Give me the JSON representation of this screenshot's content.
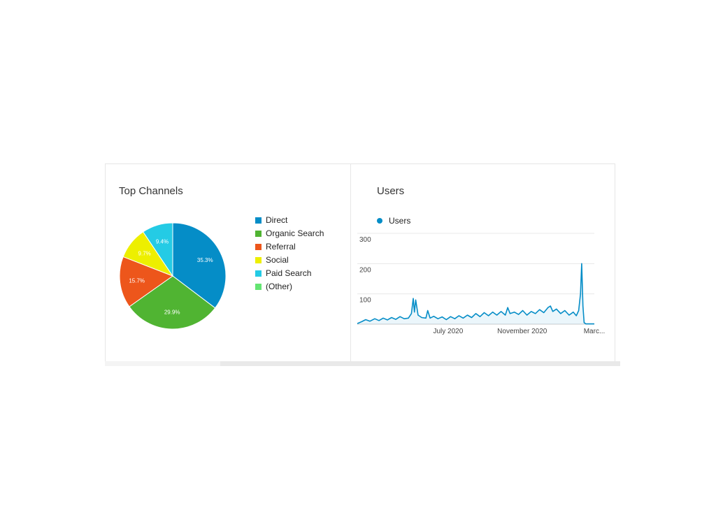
{
  "chart_data": [
    {
      "type": "pie",
      "title": "Top Channels",
      "legend_position": "right",
      "slices": [
        {
          "label": "Direct",
          "value": 35.3,
          "display": "35.3%",
          "color": "#058dc7"
        },
        {
          "label": "Organic Search",
          "value": 29.9,
          "display": "29.9%",
          "color": "#50b432"
        },
        {
          "label": "Referral",
          "value": 15.7,
          "display": "15.7%",
          "color": "#ed561b"
        },
        {
          "label": "Social",
          "value": 9.7,
          "display": "9.7%",
          "color": "#edef00"
        },
        {
          "label": "Paid Search",
          "value": 9.4,
          "display": "9.4%",
          "color": "#24cbe5"
        },
        {
          "label": "(Other)",
          "value": 0,
          "display": "",
          "color": "#64e572"
        }
      ]
    },
    {
      "type": "line",
      "title": "Users",
      "series_name": "Users",
      "color": "#058dc7",
      "ylim": [
        0,
        300
      ],
      "yticks": [
        "300",
        "200",
        "100"
      ],
      "ytick_values": [
        300,
        200,
        100
      ],
      "xticks": [
        {
          "label": "July 2020",
          "x": "2020-07-01"
        },
        {
          "label": "November 2020",
          "x": "2020-11-01"
        },
        {
          "label": "Marc...",
          "x": "2021-03-01"
        }
      ],
      "x_range": [
        "2020-02-01",
        "2021-03-01"
      ],
      "grid": true,
      "points": [
        [
          "2020-02-01",
          2
        ],
        [
          "2020-02-08",
          8
        ],
        [
          "2020-02-15",
          15
        ],
        [
          "2020-02-22",
          10
        ],
        [
          "2020-03-01",
          18
        ],
        [
          "2020-03-08",
          12
        ],
        [
          "2020-03-15",
          20
        ],
        [
          "2020-03-22",
          14
        ],
        [
          "2020-03-29",
          22
        ],
        [
          "2020-04-05",
          16
        ],
        [
          "2020-04-12",
          25
        ],
        [
          "2020-04-19",
          18
        ],
        [
          "2020-04-26",
          20
        ],
        [
          "2020-05-01",
          35
        ],
        [
          "2020-05-04",
          85
        ],
        [
          "2020-05-06",
          40
        ],
        [
          "2020-05-08",
          80
        ],
        [
          "2020-05-12",
          30
        ],
        [
          "2020-05-18",
          22
        ],
        [
          "2020-05-25",
          20
        ],
        [
          "2020-05-28",
          45
        ],
        [
          "2020-06-01",
          20
        ],
        [
          "2020-06-07",
          26
        ],
        [
          "2020-06-14",
          18
        ],
        [
          "2020-06-21",
          24
        ],
        [
          "2020-06-28",
          15
        ],
        [
          "2020-07-05",
          25
        ],
        [
          "2020-07-12",
          18
        ],
        [
          "2020-07-19",
          28
        ],
        [
          "2020-07-26",
          20
        ],
        [
          "2020-08-02",
          30
        ],
        [
          "2020-08-09",
          22
        ],
        [
          "2020-08-16",
          35
        ],
        [
          "2020-08-23",
          25
        ],
        [
          "2020-08-30",
          38
        ],
        [
          "2020-09-06",
          28
        ],
        [
          "2020-09-13",
          40
        ],
        [
          "2020-09-20",
          30
        ],
        [
          "2020-09-27",
          42
        ],
        [
          "2020-10-04",
          30
        ],
        [
          "2020-10-08",
          55
        ],
        [
          "2020-10-12",
          35
        ],
        [
          "2020-10-19",
          40
        ],
        [
          "2020-10-26",
          32
        ],
        [
          "2020-11-02",
          45
        ],
        [
          "2020-11-09",
          30
        ],
        [
          "2020-11-16",
          42
        ],
        [
          "2020-11-23",
          35
        ],
        [
          "2020-11-30",
          48
        ],
        [
          "2020-12-07",
          38
        ],
        [
          "2020-12-14",
          55
        ],
        [
          "2020-12-18",
          60
        ],
        [
          "2020-12-22",
          42
        ],
        [
          "2020-12-28",
          50
        ],
        [
          "2021-01-04",
          35
        ],
        [
          "2021-01-11",
          45
        ],
        [
          "2021-01-18",
          30
        ],
        [
          "2021-01-25",
          40
        ],
        [
          "2021-01-30",
          28
        ],
        [
          "2021-02-03",
          45
        ],
        [
          "2021-02-06",
          100
        ],
        [
          "2021-02-08",
          200
        ],
        [
          "2021-02-10",
          60
        ],
        [
          "2021-02-12",
          5
        ],
        [
          "2021-02-15",
          1
        ],
        [
          "2021-03-01",
          1
        ]
      ]
    }
  ]
}
